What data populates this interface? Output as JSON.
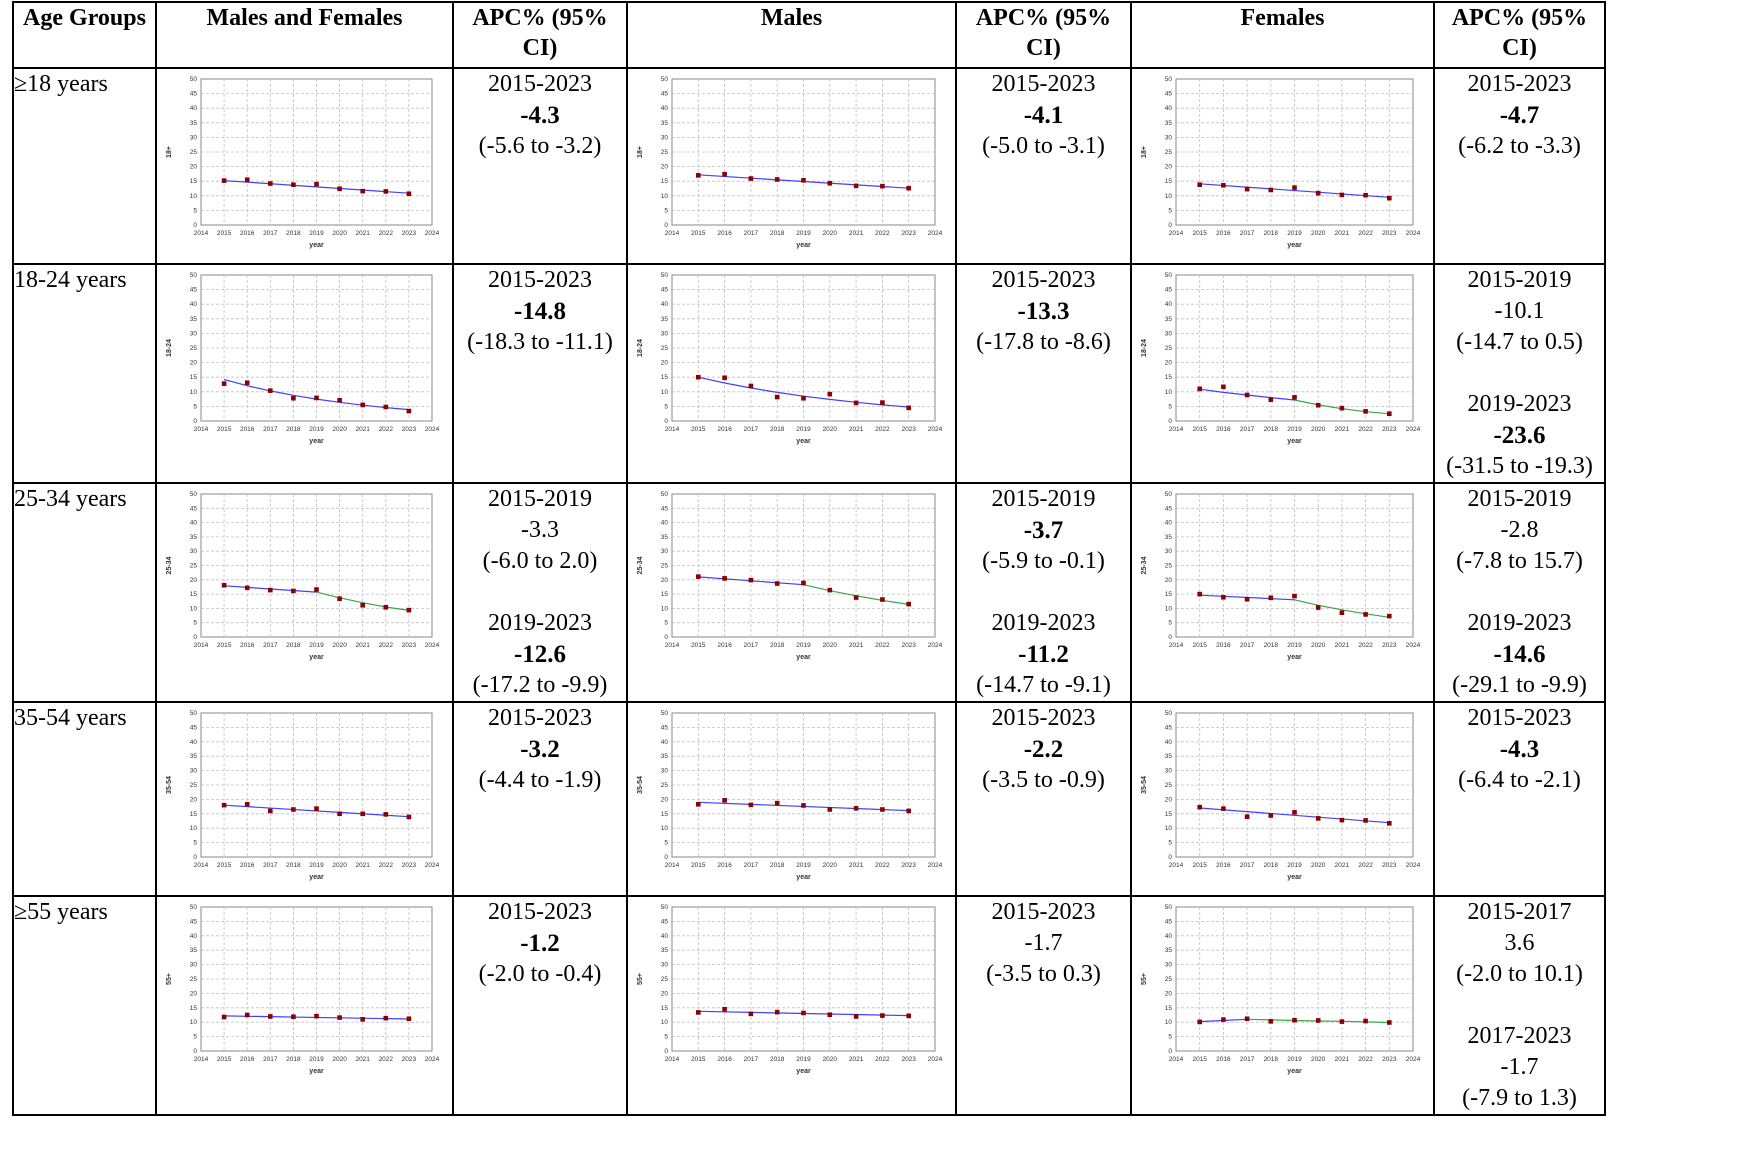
{
  "headers": {
    "age": "Age Groups",
    "both": "Males and Females",
    "apc": "APC% (95% CI)",
    "males": "Males",
    "females": "Females"
  },
  "x_axis_label": "year",
  "colors": {
    "segment1": "#4040ff",
    "segment2": "#3fa34d",
    "points": "#8b0000",
    "grid": "#c0c0c0"
  },
  "rows": [
    {
      "age": "≥18 years",
      "both": [
        {
          "period": "2015-2023",
          "apc": "-4.3",
          "ci": "(-5.6 to -3.2)",
          "significant": true
        }
      ],
      "males": [
        {
          "period": "2015-2023",
          "apc": "-4.1",
          "ci": "(-5.0 to -3.1)",
          "significant": true
        }
      ],
      "females": [
        {
          "period": "2015-2023",
          "apc": "-4.7",
          "ci": "(-6.2 to -3.3)",
          "significant": true
        }
      ]
    },
    {
      "age": "18-24 years",
      "both": [
        {
          "period": "2015-2023",
          "apc": "-14.8",
          "ci": "(-18.3 to -11.1)",
          "significant": true
        }
      ],
      "males": [
        {
          "period": "2015-2023",
          "apc": "-13.3",
          "ci": "(-17.8 to -8.6)",
          "significant": true
        }
      ],
      "females": [
        {
          "period": "2015-2019",
          "apc": "-10.1",
          "ci": "(-14.7 to 0.5)",
          "significant": false
        },
        {
          "period": "2019-2023",
          "apc": "-23.6",
          "ci": "(-31.5 to -19.3)",
          "significant": true
        }
      ]
    },
    {
      "age": "25-34 years",
      "both": [
        {
          "period": "2015-2019",
          "apc": "-3.3",
          "ci": "(-6.0 to 2.0)",
          "significant": false
        },
        {
          "period": "2019-2023",
          "apc": "-12.6",
          "ci": "(-17.2 to -9.9)",
          "significant": true
        }
      ],
      "males": [
        {
          "period": "2015-2019",
          "apc": "-3.7",
          "ci": "(-5.9 to -0.1)",
          "significant": true
        },
        {
          "period": "2019-2023",
          "apc": "-11.2",
          "ci": "(-14.7 to -9.1)",
          "significant": true
        }
      ],
      "females": [
        {
          "period": "2015-2019",
          "apc": "-2.8",
          "ci": "(-7.8 to 15.7)",
          "significant": false
        },
        {
          "period": "2019-2023",
          "apc": "-14.6",
          "ci": "(-29.1 to -9.9)",
          "significant": true
        }
      ]
    },
    {
      "age": "35-54 years",
      "both": [
        {
          "period": "2015-2023",
          "apc": "-3.2",
          "ci": "(-4.4 to -1.9)",
          "significant": true
        }
      ],
      "males": [
        {
          "period": "2015-2023",
          "apc": "-2.2",
          "ci": "(-3.5 to -0.9)",
          "significant": true
        }
      ],
      "females": [
        {
          "period": "2015-2023",
          "apc": "-4.3",
          "ci": "(-6.4 to -2.1)",
          "significant": true
        }
      ]
    },
    {
      "age": "≥55 years",
      "both": [
        {
          "period": "2015-2023",
          "apc": "-1.2",
          "ci": "(-2.0 to -0.4)",
          "significant": true
        }
      ],
      "males": [
        {
          "period": "2015-2023",
          "apc": "-1.7",
          "ci": "(-3.5 to 0.3)",
          "significant": false
        }
      ],
      "females": [
        {
          "period": "2015-2017",
          "apc": "3.6",
          "ci": "(-2.0 to 10.1)",
          "significant": false
        },
        {
          "period": "2017-2023",
          "apc": "-1.7",
          "ci": "(-7.9 to 1.3)",
          "significant": false
        }
      ]
    }
  ],
  "chart_data": [
    {
      "type": "line",
      "group": "Males and Females",
      "ylabel": "18+",
      "xlabel": "year",
      "x": [
        2015,
        2016,
        2017,
        2018,
        2019,
        2020,
        2021,
        2022,
        2023
      ],
      "observed": [
        15.2,
        15.5,
        14.2,
        13.8,
        14.0,
        12.4,
        11.6,
        11.5,
        10.7
      ],
      "fitted": [
        [
          2015,
          15.2
        ],
        [
          2023,
          10.9
        ]
      ],
      "fitted2": [],
      "xlim": [
        2014,
        2024
      ],
      "ylim": [
        0,
        50
      ],
      "yticks": [
        0,
        5,
        10,
        15,
        20,
        25,
        30,
        35,
        40,
        45,
        50
      ]
    },
    {
      "type": "line",
      "group": "Males",
      "ylabel": "18+",
      "xlabel": "year",
      "x": [
        2015,
        2016,
        2017,
        2018,
        2019,
        2020,
        2021,
        2022,
        2023
      ],
      "observed": [
        17.0,
        17.4,
        15.9,
        15.6,
        15.3,
        14.3,
        13.4,
        13.3,
        12.6
      ],
      "fitted": [
        [
          2015,
          17.2
        ],
        [
          2023,
          12.6
        ]
      ],
      "fitted2": [],
      "xlim": [
        2014,
        2024
      ],
      "ylim": [
        0,
        50
      ],
      "yticks": [
        0,
        5,
        10,
        15,
        20,
        25,
        30,
        35,
        40,
        45,
        50
      ]
    },
    {
      "type": "line",
      "group": "Females",
      "ylabel": "18+",
      "xlabel": "year",
      "x": [
        2015,
        2016,
        2017,
        2018,
        2019,
        2020,
        2021,
        2022,
        2023
      ],
      "observed": [
        13.8,
        13.6,
        12.3,
        12.0,
        12.8,
        10.9,
        10.3,
        10.2,
        9.2
      ],
      "fitted": [
        [
          2015,
          14.1
        ],
        [
          2023,
          9.5
        ]
      ],
      "fitted2": [],
      "xlim": [
        2014,
        2024
      ],
      "ylim": [
        0,
        50
      ],
      "yticks": [
        0,
        5,
        10,
        15,
        20,
        25,
        30,
        35,
        40,
        45,
        50
      ]
    },
    {
      "type": "line",
      "group": "Males and Females",
      "ylabel": "18-24",
      "xlabel": "year",
      "x": [
        2015,
        2016,
        2017,
        2018,
        2019,
        2020,
        2021,
        2022,
        2023
      ],
      "observed": [
        12.8,
        13.1,
        10.4,
        7.8,
        7.9,
        7.1,
        5.5,
        4.8,
        3.4
      ],
      "fitted": [
        [
          2015,
          14.2
        ],
        [
          2016,
          12.1
        ],
        [
          2017,
          10.3
        ],
        [
          2018,
          8.8
        ],
        [
          2019,
          7.5
        ],
        [
          2020,
          6.4
        ],
        [
          2021,
          5.4
        ],
        [
          2022,
          4.6
        ],
        [
          2023,
          3.9
        ]
      ],
      "fitted2": [],
      "xlim": [
        2014,
        2024
      ],
      "ylim": [
        0,
        50
      ],
      "yticks": [
        0,
        5,
        10,
        15,
        20,
        25,
        30,
        35,
        40,
        45,
        50
      ]
    },
    {
      "type": "line",
      "group": "Males",
      "ylabel": "18-24",
      "xlabel": "year",
      "x": [
        2015,
        2016,
        2017,
        2018,
        2019,
        2020,
        2021,
        2022,
        2023
      ],
      "observed": [
        15.0,
        14.8,
        12.0,
        8.2,
        7.8,
        9.2,
        6.2,
        6.3,
        4.5
      ],
      "fitted": [
        [
          2015,
          15.0
        ],
        [
          2016,
          13.0
        ],
        [
          2017,
          11.3
        ],
        [
          2018,
          9.8
        ],
        [
          2019,
          8.5
        ],
        [
          2020,
          7.4
        ],
        [
          2021,
          6.4
        ],
        [
          2022,
          5.5
        ],
        [
          2023,
          4.8
        ]
      ],
      "fitted2": [],
      "xlim": [
        2014,
        2024
      ],
      "ylim": [
        0,
        50
      ],
      "yticks": [
        0,
        5,
        10,
        15,
        20,
        25,
        30,
        35,
        40,
        45,
        50
      ]
    },
    {
      "type": "line",
      "group": "Females",
      "ylabel": "18-24",
      "xlabel": "year",
      "x": [
        2015,
        2016,
        2017,
        2018,
        2019,
        2020,
        2021,
        2022,
        2023
      ],
      "observed": [
        11.0,
        11.7,
        8.9,
        7.3,
        8.1,
        5.4,
        4.4,
        3.3,
        2.5
      ],
      "fitted": [
        [
          2015,
          10.9
        ],
        [
          2016,
          9.8
        ],
        [
          2017,
          8.9
        ],
        [
          2018,
          8.0
        ],
        [
          2019,
          7.2
        ]
      ],
      "fitted2": [
        [
          2019,
          7.2
        ],
        [
          2020,
          5.5
        ],
        [
          2021,
          4.2
        ],
        [
          2022,
          3.2
        ],
        [
          2023,
          2.5
        ]
      ],
      "xlim": [
        2014,
        2024
      ],
      "ylim": [
        0,
        50
      ],
      "yticks": [
        0,
        5,
        10,
        15,
        20,
        25,
        30,
        35,
        40,
        45,
        50
      ]
    },
    {
      "type": "line",
      "group": "Males and Females",
      "ylabel": "25-34",
      "xlabel": "year",
      "x": [
        2015,
        2016,
        2017,
        2018,
        2019,
        2020,
        2021,
        2022,
        2023
      ],
      "observed": [
        18.1,
        17.2,
        16.4,
        16.1,
        16.6,
        13.4,
        11.1,
        10.4,
        9.4
      ],
      "fitted": [
        [
          2015,
          17.9
        ],
        [
          2019,
          15.7
        ]
      ],
      "fitted2": [
        [
          2019,
          15.7
        ],
        [
          2020,
          13.7
        ],
        [
          2021,
          12.0
        ],
        [
          2022,
          10.5
        ],
        [
          2023,
          9.3
        ]
      ],
      "xlim": [
        2014,
        2024
      ],
      "ylim": [
        0,
        50
      ],
      "yticks": [
        0,
        5,
        10,
        15,
        20,
        25,
        30,
        35,
        40,
        45,
        50
      ]
    },
    {
      "type": "line",
      "group": "Males",
      "ylabel": "25-34",
      "xlabel": "year",
      "x": [
        2015,
        2016,
        2017,
        2018,
        2019,
        2020,
        2021,
        2022,
        2023
      ],
      "observed": [
        21.1,
        20.5,
        19.9,
        18.7,
        18.9,
        16.4,
        13.8,
        13.1,
        11.5
      ],
      "fitted": [
        [
          2015,
          21.0
        ],
        [
          2019,
          18.3
        ]
      ],
      "fitted2": [
        [
          2019,
          18.3
        ],
        [
          2020,
          16.2
        ],
        [
          2021,
          14.4
        ],
        [
          2022,
          12.8
        ],
        [
          2023,
          11.4
        ]
      ],
      "xlim": [
        2014,
        2024
      ],
      "ylim": [
        0,
        50
      ],
      "yticks": [
        0,
        5,
        10,
        15,
        20,
        25,
        30,
        35,
        40,
        45,
        50
      ]
    },
    {
      "type": "line",
      "group": "Females",
      "ylabel": "25-34",
      "xlabel": "year",
      "x": [
        2015,
        2016,
        2017,
        2018,
        2019,
        2020,
        2021,
        2022,
        2023
      ],
      "observed": [
        15.0,
        13.9,
        13.2,
        13.7,
        14.3,
        10.3,
        8.5,
        7.9,
        7.3
      ],
      "fitted": [
        [
          2015,
          14.6
        ],
        [
          2019,
          13.0
        ]
      ],
      "fitted2": [
        [
          2019,
          13.0
        ],
        [
          2020,
          11.1
        ],
        [
          2021,
          9.5
        ],
        [
          2022,
          8.1
        ],
        [
          2023,
          6.9
        ]
      ],
      "xlim": [
        2014,
        2024
      ],
      "ylim": [
        0,
        50
      ],
      "yticks": [
        0,
        5,
        10,
        15,
        20,
        25,
        30,
        35,
        40,
        45,
        50
      ]
    },
    {
      "type": "line",
      "group": "Males and Females",
      "ylabel": "35-54",
      "xlabel": "year",
      "x": [
        2015,
        2016,
        2017,
        2018,
        2019,
        2020,
        2021,
        2022,
        2023
      ],
      "observed": [
        18.0,
        18.3,
        16.0,
        16.5,
        16.8,
        15.0,
        15.0,
        14.8,
        13.9
      ],
      "fitted": [
        [
          2015,
          18.0
        ],
        [
          2023,
          14.0
        ]
      ],
      "fitted2": [],
      "xlim": [
        2014,
        2024
      ],
      "ylim": [
        0,
        50
      ],
      "yticks": [
        0,
        5,
        10,
        15,
        20,
        25,
        30,
        35,
        40,
        45,
        50
      ]
    },
    {
      "type": "line",
      "group": "Males",
      "ylabel": "35-54",
      "xlabel": "year",
      "x": [
        2015,
        2016,
        2017,
        2018,
        2019,
        2020,
        2021,
        2022,
        2023
      ],
      "observed": [
        18.3,
        19.7,
        18.1,
        18.7,
        17.9,
        16.5,
        16.9,
        16.5,
        16.0
      ],
      "fitted": [
        [
          2015,
          19.0
        ],
        [
          2023,
          16.1
        ]
      ],
      "fitted2": [],
      "xlim": [
        2014,
        2024
      ],
      "ylim": [
        0,
        50
      ],
      "yticks": [
        0,
        5,
        10,
        15,
        20,
        25,
        30,
        35,
        40,
        45,
        50
      ]
    },
    {
      "type": "line",
      "group": "Females",
      "ylabel": "35-54",
      "xlabel": "year",
      "x": [
        2015,
        2016,
        2017,
        2018,
        2019,
        2020,
        2021,
        2022,
        2023
      ],
      "observed": [
        17.3,
        16.8,
        14.0,
        14.4,
        15.5,
        13.4,
        12.8,
        12.7,
        11.7
      ],
      "fitted": [
        [
          2015,
          17.0
        ],
        [
          2023,
          11.9
        ]
      ],
      "fitted2": [],
      "xlim": [
        2014,
        2024
      ],
      "ylim": [
        0,
        50
      ],
      "yticks": [
        0,
        5,
        10,
        15,
        20,
        25,
        30,
        35,
        40,
        45,
        50
      ]
    },
    {
      "type": "line",
      "group": "Males and Females",
      "ylabel": "55+",
      "xlabel": "year",
      "x": [
        2015,
        2016,
        2017,
        2018,
        2019,
        2020,
        2021,
        2022,
        2023
      ],
      "observed": [
        11.8,
        12.5,
        12.0,
        11.9,
        12.1,
        11.6,
        11.0,
        11.4,
        11.2
      ],
      "fitted": [
        [
          2015,
          12.2
        ],
        [
          2023,
          11.1
        ]
      ],
      "fitted2": [],
      "xlim": [
        2014,
        2024
      ],
      "ylim": [
        0,
        50
      ],
      "yticks": [
        0,
        5,
        10,
        15,
        20,
        25,
        30,
        35,
        40,
        45,
        50
      ]
    },
    {
      "type": "line",
      "group": "Males",
      "ylabel": "55+",
      "xlabel": "year",
      "x": [
        2015,
        2016,
        2017,
        2018,
        2019,
        2020,
        2021,
        2022,
        2023
      ],
      "observed": [
        13.4,
        14.5,
        12.9,
        13.5,
        13.2,
        12.6,
        12.0,
        12.3,
        12.2
      ],
      "fitted": [
        [
          2015,
          13.8
        ],
        [
          2023,
          12.3
        ]
      ],
      "fitted2": [],
      "xlim": [
        2014,
        2024
      ],
      "ylim": [
        0,
        50
      ],
      "yticks": [
        0,
        5,
        10,
        15,
        20,
        25,
        30,
        35,
        40,
        45,
        50
      ]
    },
    {
      "type": "line",
      "group": "Females",
      "ylabel": "55+",
      "xlabel": "year",
      "x": [
        2015,
        2016,
        2017,
        2018,
        2019,
        2020,
        2021,
        2022,
        2023
      ],
      "observed": [
        10.1,
        10.9,
        11.2,
        10.3,
        10.7,
        10.6,
        10.2,
        10.4,
        9.9
      ],
      "fitted": [
        [
          2015,
          10.2
        ],
        [
          2017,
          11.0
        ]
      ],
      "fitted2": [
        [
          2017,
          11.0
        ],
        [
          2018,
          10.8
        ],
        [
          2019,
          10.6
        ],
        [
          2020,
          10.4
        ],
        [
          2021,
          10.3
        ],
        [
          2022,
          10.1
        ],
        [
          2023,
          9.9
        ]
      ],
      "xlim": [
        2014,
        2024
      ],
      "ylim": [
        0,
        50
      ],
      "yticks": [
        0,
        5,
        10,
        15,
        20,
        25,
        30,
        35,
        40,
        45,
        50
      ]
    }
  ]
}
